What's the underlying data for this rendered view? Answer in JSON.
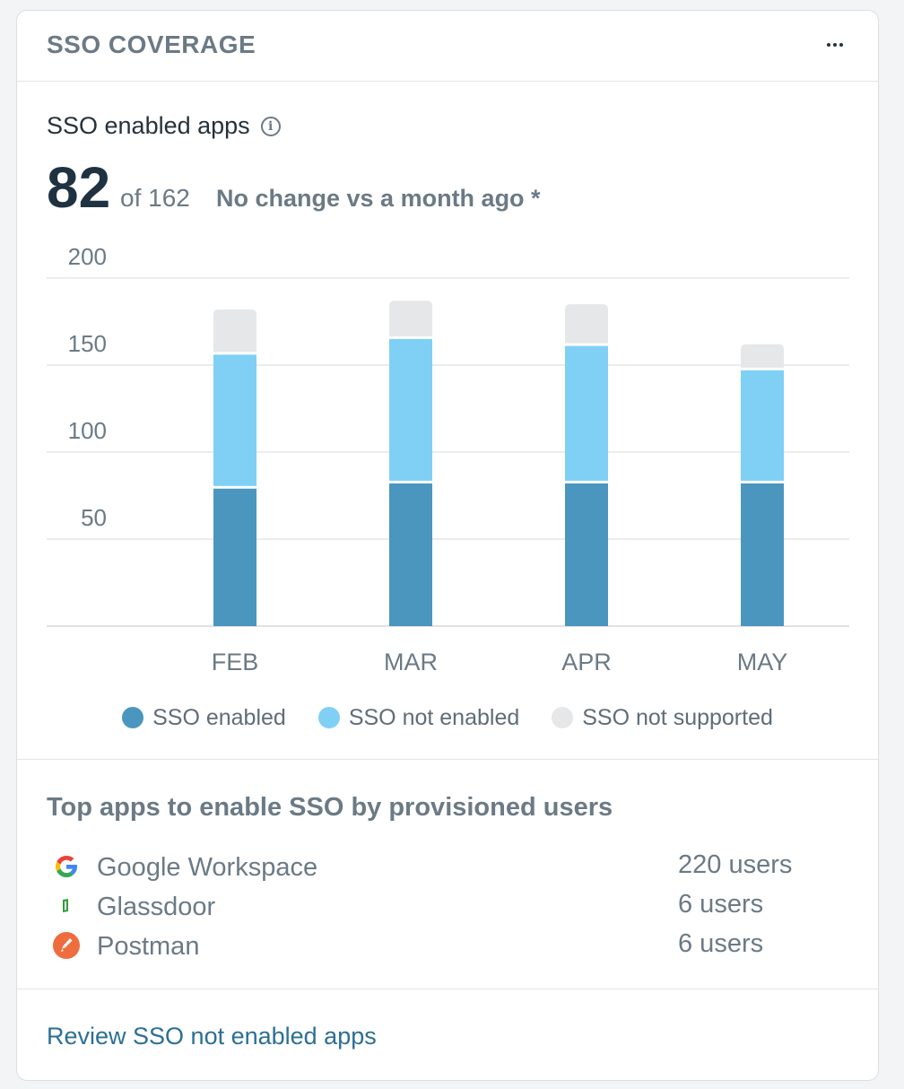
{
  "widget": {
    "title": "SSO COVERAGE",
    "menu_icon": "more-horizontal-icon"
  },
  "metric": {
    "label": "SSO enabled apps",
    "info_icon": "info-icon",
    "info_glyph": "i",
    "value": "82",
    "of_text": "of 162",
    "change_text": "No change vs a month ago *"
  },
  "chart_data": {
    "type": "bar",
    "stacked": true,
    "categories": [
      "FEB",
      "MAR",
      "APR",
      "MAY"
    ],
    "series": [
      {
        "name": "SSO enabled",
        "color": "#4b96be",
        "values": [
          79,
          82,
          82,
          82
        ]
      },
      {
        "name": "SSO not enabled",
        "color": "#7fd0f4",
        "values": [
          77,
          83,
          79,
          65
        ]
      },
      {
        "name": "SSO not supported",
        "color": "#e6e7e9",
        "values": [
          26,
          22,
          24,
          15
        ]
      }
    ],
    "y_ticks": [
      "50",
      "100",
      "150",
      "200"
    ],
    "ylim": [
      0,
      200
    ],
    "grid": true,
    "legend_position": "bottom-center"
  },
  "top_apps": {
    "title": "Top apps to enable SSO by provisioned users",
    "items": [
      {
        "name": "Google Workspace",
        "users": "220 users",
        "icon": "google-icon"
      },
      {
        "name": "Glassdoor",
        "users": "6 users",
        "icon": "glassdoor-icon"
      },
      {
        "name": "Postman",
        "users": "6 users",
        "icon": "postman-icon"
      }
    ]
  },
  "footer": {
    "link_label": "Review SSO not enabled apps"
  }
}
